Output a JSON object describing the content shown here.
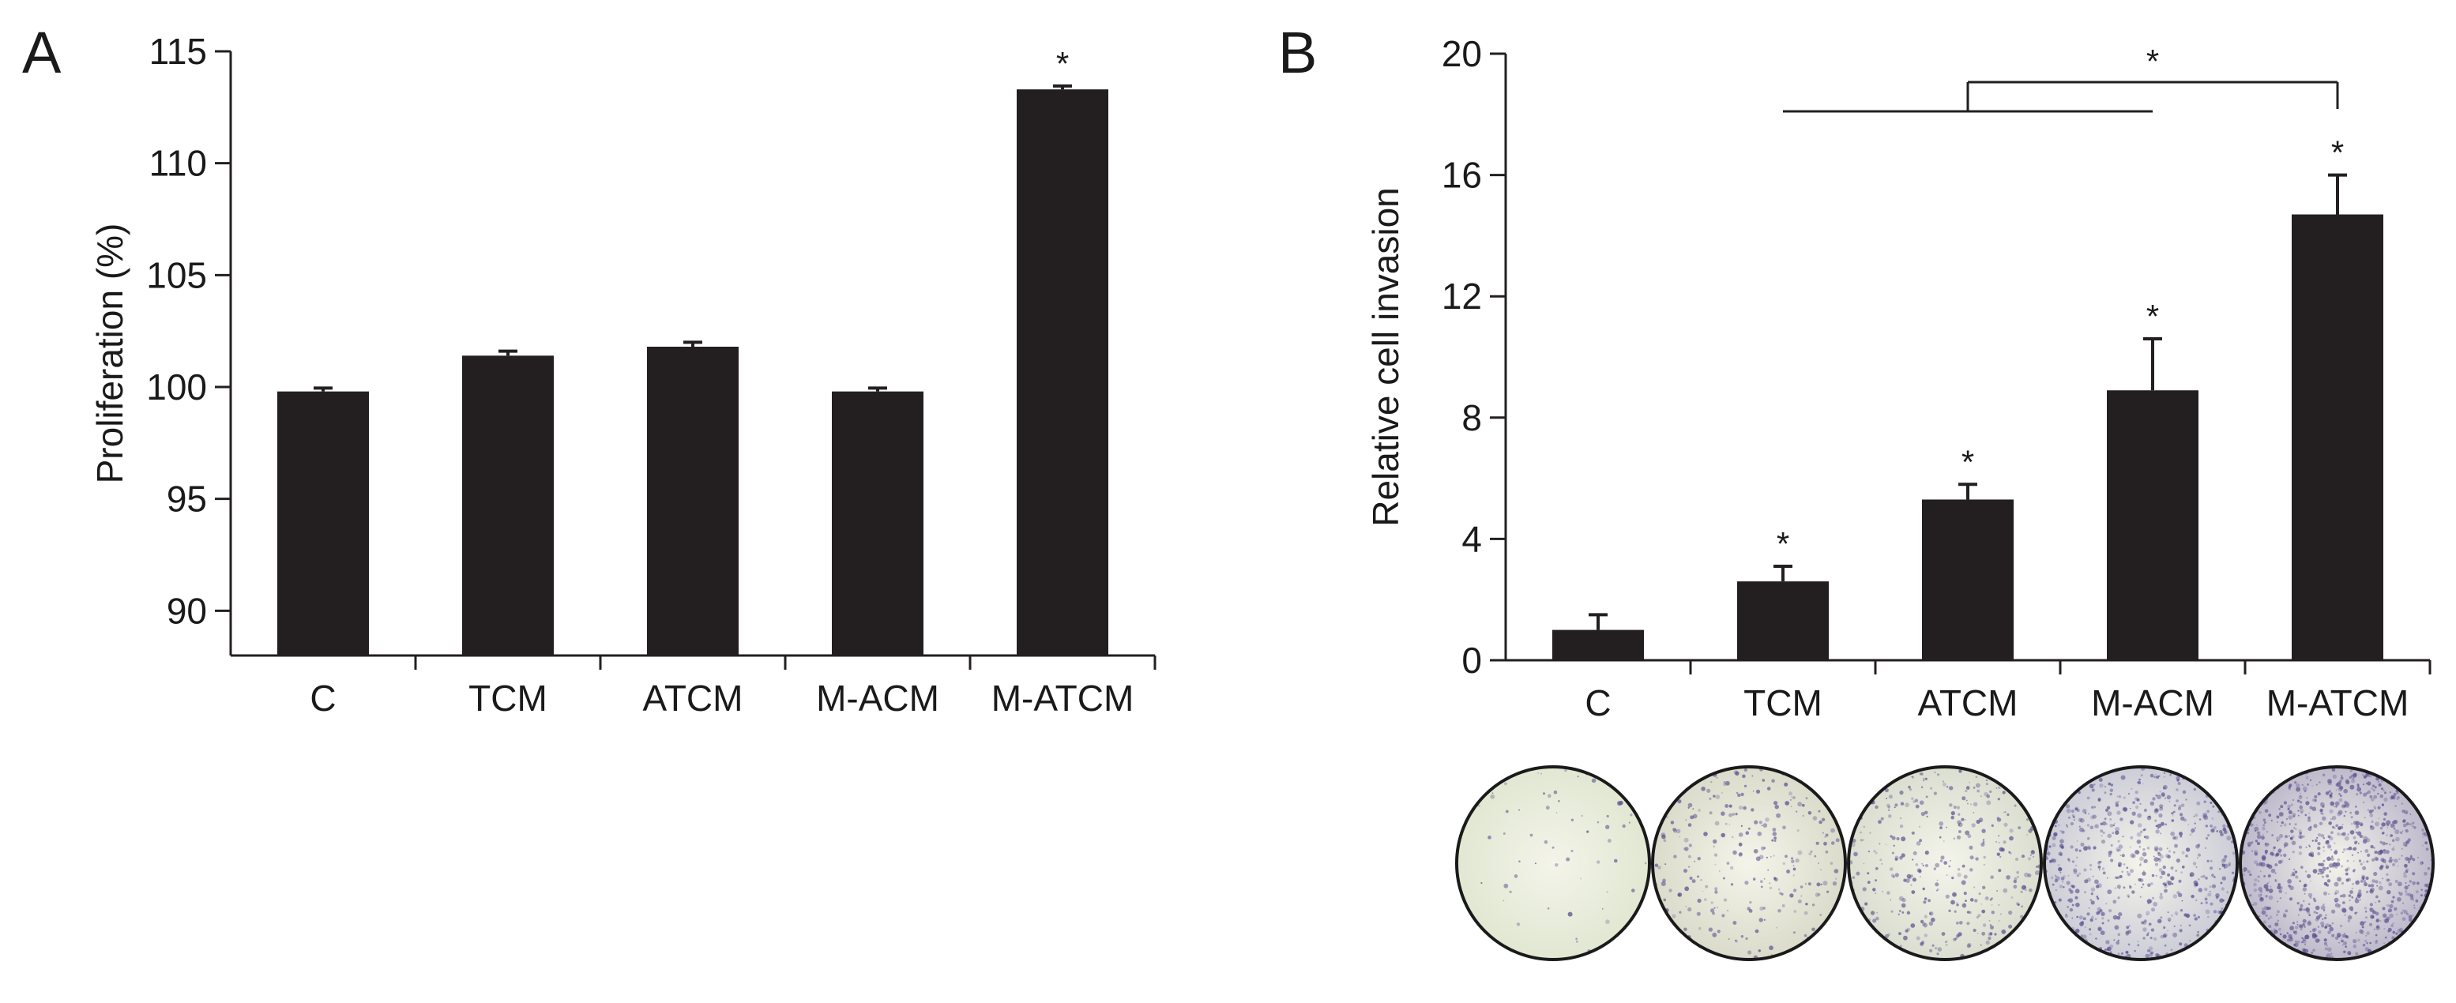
{
  "chart_data": [
    {
      "panel_label": "A",
      "type": "bar",
      "title": "",
      "xlabel": "",
      "ylabel": "Proliferation (%)",
      "y_axis_break": true,
      "ylim": [
        88,
        115
      ],
      "yticks": [
        90,
        95,
        100,
        105,
        110,
        115
      ],
      "categories": [
        "C",
        "TCM",
        "ATCM",
        "M-ACM",
        "M-ATCM"
      ],
      "values": [
        99.8,
        101.4,
        101.8,
        99.8,
        113.3
      ],
      "errors": [
        0.15,
        0.2,
        0.2,
        0.15,
        0.15
      ],
      "significance": [
        "",
        "",
        "",
        "",
        "*"
      ],
      "grid": false,
      "colors": {
        "bar": "#231f20",
        "axis": "#231f20"
      }
    },
    {
      "panel_label": "B",
      "type": "bar",
      "title": "",
      "xlabel": "",
      "ylabel": "Relative cell invasion",
      "ylim": [
        0,
        20
      ],
      "yticks": [
        0,
        4,
        8,
        12,
        16,
        20
      ],
      "categories": [
        "C",
        "TCM",
        "ATCM",
        "M-ACM",
        "M-ATCM"
      ],
      "values": [
        1.0,
        2.6,
        5.3,
        8.9,
        14.7
      ],
      "errors": [
        0.5,
        0.5,
        0.5,
        1.7,
        1.3
      ],
      "significance": [
        "",
        "*",
        "*",
        "*",
        "*"
      ],
      "comparison": {
        "groups": [
          "TCM",
          "M-ACM"
        ],
        "versus": "M-ATCM",
        "label": "*"
      },
      "grid": false,
      "micrographs": [
        {
          "category": "C",
          "stain": "light",
          "tint": "#dfe6cf",
          "dots": 60
        },
        {
          "category": "TCM",
          "stain": "sparse",
          "tint": "#d9d9c8",
          "dots": 260
        },
        {
          "category": "ATCM",
          "stain": "moderate",
          "tint": "#d8dccd",
          "dots": 360
        },
        {
          "category": "M-ACM",
          "stain": "dense",
          "tint": "#c9c9d6",
          "dots": 620
        },
        {
          "category": "M-ATCM",
          "stain": "very dense",
          "tint": "#b9b4c9",
          "dots": 900
        }
      ],
      "colors": {
        "bar": "#231f20",
        "axis": "#231f20",
        "stain_dot": "#5a4f8f"
      }
    }
  ]
}
